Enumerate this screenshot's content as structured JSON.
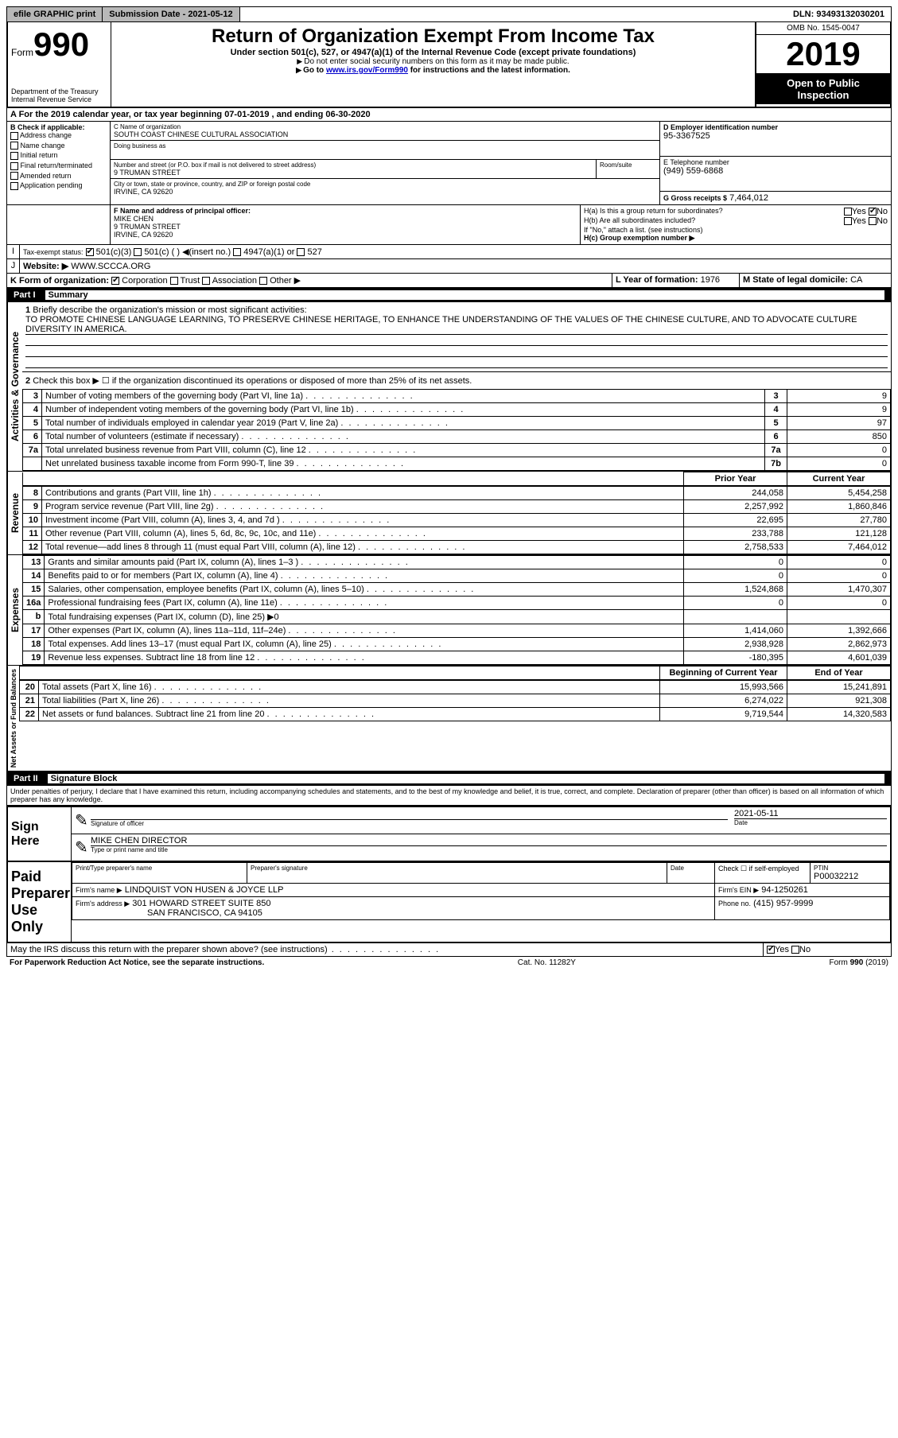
{
  "topbar": {
    "efile": "efile GRAPHIC print",
    "sub_label": "Submission Date - 2021-05-12",
    "dln": "DLN: 93493132030201"
  },
  "header": {
    "form_prefix": "Form",
    "form_num": "990",
    "dept": "Department of the Treasury\nInternal Revenue Service",
    "title": "Return of Organization Exempt From Income Tax",
    "sub": "Under section 501(c), 527, or 4947(a)(1) of the Internal Revenue Code (except private foundations)",
    "note1": "Do not enter social security numbers on this form as it may be made public.",
    "note2_pre": "Go to ",
    "note2_link": "www.irs.gov/Form990",
    "note2_post": " for instructions and the latest information.",
    "omb": "OMB No. 1545-0047",
    "year": "2019",
    "inspect": "Open to Public Inspection"
  },
  "period": {
    "text": "A For the 2019 calendar year, or tax year beginning 07-01-2019   , and ending 06-30-2020"
  },
  "B": {
    "label": "B Check if applicable:",
    "items": [
      "Address change",
      "Name change",
      "Initial return",
      "Final return/terminated",
      "Amended return",
      "Application pending"
    ]
  },
  "C": {
    "name_lbl": "C Name of organization",
    "name": "SOUTH COAST CHINESE CULTURAL ASSOCIATION",
    "dba_lbl": "Doing business as",
    "addr_lbl": "Number and street (or P.O. box if mail is not delivered to street address)",
    "room_lbl": "Room/suite",
    "addr": "9 TRUMAN STREET",
    "city_lbl": "City or town, state or province, country, and ZIP or foreign postal code",
    "city": "IRVINE, CA  92620"
  },
  "D": {
    "lbl": "D Employer identification number",
    "val": "95-3367525"
  },
  "E": {
    "lbl": "E Telephone number",
    "val": "(949) 559-6868"
  },
  "G": {
    "lbl": "G Gross receipts $",
    "val": "7,464,012"
  },
  "F": {
    "lbl": "F  Name and address of principal officer:",
    "name": "MIKE CHEN",
    "addr1": "9 TRUMAN STREET",
    "addr2": "IRVINE, CA  92620"
  },
  "H": {
    "a": "H(a)  Is this a group return for subordinates?",
    "b": "H(b)  Are all subordinates included?",
    "b_note": "If \"No,\" attach a list. (see instructions)",
    "c": "H(c)  Group exemption number ▶",
    "yes": "Yes",
    "no": "No"
  },
  "I": {
    "lbl": "Tax-exempt status:",
    "opts": [
      "501(c)(3)",
      "501(c) (  ) ◀(insert no.)",
      "4947(a)(1) or",
      "527"
    ]
  },
  "J": {
    "lbl": "Website: ▶",
    "val": "WWW.SCCCA.ORG"
  },
  "K": {
    "lbl": "K Form of organization:",
    "opts": [
      "Corporation",
      "Trust",
      "Association",
      "Other ▶"
    ]
  },
  "L": {
    "lbl": "L Year of formation:",
    "val": "1976"
  },
  "M": {
    "lbl": "M State of legal domicile:",
    "val": "CA"
  },
  "part1": {
    "hdr": "Part I",
    "title": "Summary",
    "side1": "Activities & Governance",
    "side2": "Revenue",
    "side3": "Expenses",
    "side4": "Net Assets or Fund Balances",
    "q1": "Briefly describe the organization's mission or most significant activities:",
    "mission": "TO PROMOTE CHINESE LANGUAGE LEARNING, TO PRESERVE CHINESE HERITAGE, TO ENHANCE THE UNDERSTANDING OF THE VALUES OF THE CHINESE CULTURE, AND TO ADVOCATE CULTURE DIVERSITY IN AMERICA.",
    "q2": "Check this box ▶ ☐ if the organization discontinued its operations or disposed of more than 25% of its net assets.",
    "rows_gov": [
      {
        "n": "3",
        "t": "Number of voting members of the governing body (Part VI, line 1a)",
        "box": "3",
        "v": "9"
      },
      {
        "n": "4",
        "t": "Number of independent voting members of the governing body (Part VI, line 1b)",
        "box": "4",
        "v": "9"
      },
      {
        "n": "5",
        "t": "Total number of individuals employed in calendar year 2019 (Part V, line 2a)",
        "box": "5",
        "v": "97"
      },
      {
        "n": "6",
        "t": "Total number of volunteers (estimate if necessary)",
        "box": "6",
        "v": "850"
      },
      {
        "n": "7a",
        "t": "Total unrelated business revenue from Part VIII, column (C), line 12",
        "box": "7a",
        "v": "0"
      },
      {
        "n": "",
        "t": "Net unrelated business taxable income from Form 990-T, line 39",
        "box": "7b",
        "v": "0"
      }
    ],
    "col_hdr_prior": "Prior Year",
    "col_hdr_curr": "Current Year",
    "rows_rev": [
      {
        "n": "8",
        "t": "Contributions and grants (Part VIII, line 1h)",
        "p": "244,058",
        "c": "5,454,258"
      },
      {
        "n": "9",
        "t": "Program service revenue (Part VIII, line 2g)",
        "p": "2,257,992",
        "c": "1,860,846"
      },
      {
        "n": "10",
        "t": "Investment income (Part VIII, column (A), lines 3, 4, and 7d )",
        "p": "22,695",
        "c": "27,780"
      },
      {
        "n": "11",
        "t": "Other revenue (Part VIII, column (A), lines 5, 6d, 8c, 9c, 10c, and 11e)",
        "p": "233,788",
        "c": "121,128"
      },
      {
        "n": "12",
        "t": "Total revenue—add lines 8 through 11 (must equal Part VIII, column (A), line 12)",
        "p": "2,758,533",
        "c": "7,464,012"
      }
    ],
    "rows_exp": [
      {
        "n": "13",
        "t": "Grants and similar amounts paid (Part IX, column (A), lines 1–3 )",
        "p": "0",
        "c": "0"
      },
      {
        "n": "14",
        "t": "Benefits paid to or for members (Part IX, column (A), line 4)",
        "p": "0",
        "c": "0"
      },
      {
        "n": "15",
        "t": "Salaries, other compensation, employee benefits (Part IX, column (A), lines 5–10)",
        "p": "1,524,868",
        "c": "1,470,307"
      },
      {
        "n": "16a",
        "t": "Professional fundraising fees (Part IX, column (A), line 11e)",
        "p": "0",
        "c": "0"
      },
      {
        "n": "b",
        "t": "Total fundraising expenses (Part IX, column (D), line 25) ▶0",
        "p": "",
        "c": "",
        "grey": true
      },
      {
        "n": "17",
        "t": "Other expenses (Part IX, column (A), lines 11a–11d, 11f–24e)",
        "p": "1,414,060",
        "c": "1,392,666"
      },
      {
        "n": "18",
        "t": "Total expenses. Add lines 13–17 (must equal Part IX, column (A), line 25)",
        "p": "2,938,928",
        "c": "2,862,973"
      },
      {
        "n": "19",
        "t": "Revenue less expenses. Subtract line 18 from line 12",
        "p": "-180,395",
        "c": "4,601,039"
      }
    ],
    "col_hdr_beg": "Beginning of Current Year",
    "col_hdr_end": "End of Year",
    "rows_net": [
      {
        "n": "20",
        "t": "Total assets (Part X, line 16)",
        "p": "15,993,566",
        "c": "15,241,891"
      },
      {
        "n": "21",
        "t": "Total liabilities (Part X, line 26)",
        "p": "6,274,022",
        "c": "921,308"
      },
      {
        "n": "22",
        "t": "Net assets or fund balances. Subtract line 21 from line 20",
        "p": "9,719,544",
        "c": "14,320,583"
      }
    ]
  },
  "part2": {
    "hdr": "Part II",
    "title": "Signature Block",
    "decl": "Under penalties of perjury, I declare that I have examined this return, including accompanying schedules and statements, and to the best of my knowledge and belief, it is true, correct, and complete. Declaration of preparer (other than officer) is based on all information of which preparer has any knowledge.",
    "sign_lbl": "Sign Here",
    "sig_of": "Signature of officer",
    "date_lbl": "Date",
    "date": "2021-05-11",
    "name_title": "MIKE CHEN  DIRECTOR",
    "name_lbl": "Type or print name and title",
    "paid_lbl": "Paid Preparer Use Only",
    "prep_name_lbl": "Print/Type preparer's name",
    "prep_sig_lbl": "Preparer's signature",
    "prep_date_lbl": "Date",
    "self_emp": "Check ☐ if self-employed",
    "ptin_lbl": "PTIN",
    "ptin": "P00032212",
    "firm_name_lbl": "Firm's name    ▶",
    "firm_name": "LINDQUIST VON HUSEN & JOYCE LLP",
    "firm_ein_lbl": "Firm's EIN ▶",
    "firm_ein": "94-1250261",
    "firm_addr_lbl": "Firm's address ▶",
    "firm_addr1": "301 HOWARD STREET SUITE 850",
    "firm_addr2": "SAN FRANCISCO, CA  94105",
    "phone_lbl": "Phone no.",
    "phone": "(415) 957-9999",
    "discuss": "May the IRS discuss this return with the preparer shown above? (see instructions)",
    "yes": "Yes",
    "no": "No"
  },
  "footer": {
    "left": "For Paperwork Reduction Act Notice, see the separate instructions.",
    "mid": "Cat. No. 11282Y",
    "right": "Form 990 (2019)"
  }
}
